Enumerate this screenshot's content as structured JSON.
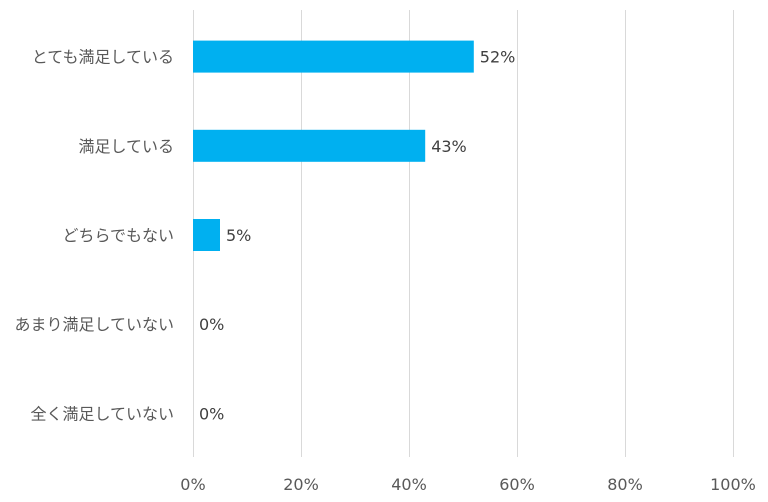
{
  "chart_data": {
    "type": "bar",
    "orientation": "horizontal",
    "categories": [
      "とても満足している",
      "満足している",
      "どちらでもない",
      "あまり満足していない",
      "全く満足していない"
    ],
    "values": [
      52,
      43,
      5,
      0,
      0
    ],
    "data_labels": [
      "52%",
      "43%",
      "5%",
      "0%",
      "0%"
    ],
    "xlim": [
      0,
      100
    ],
    "x_ticks": [
      0,
      20,
      40,
      60,
      80,
      100
    ],
    "x_tick_labels": [
      "0%",
      "20%",
      "40%",
      "60%",
      "80%",
      "100%"
    ],
    "grid": true,
    "legend": "none",
    "bar_color": "#00b0f0",
    "grid_color": "#d9d9d9",
    "label_color": "#595959"
  }
}
